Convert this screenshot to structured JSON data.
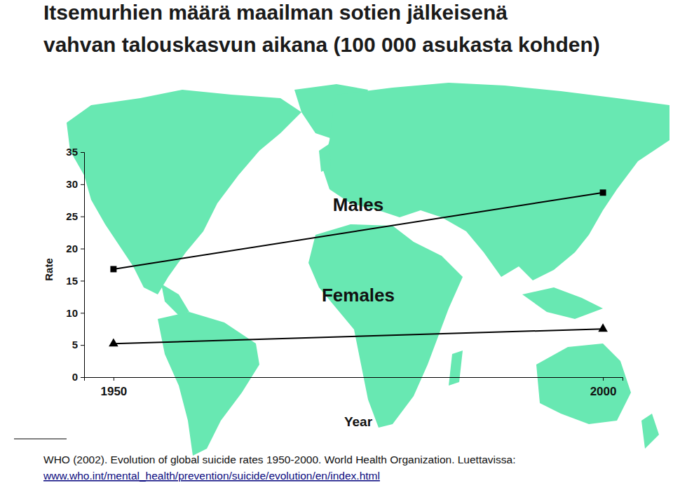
{
  "chart_data": {
    "type": "line",
    "title": [
      "Itsemurhien määrä maailman sotien jälkeisenä",
      "vahvan talouskasvun aikana (100 000 asukasta kohden)"
    ],
    "x_label": "Year",
    "y_label": "Rate",
    "x": [
      1950,
      2000
    ],
    "series": [
      {
        "name": "Males",
        "color": "#000000",
        "marker": "square",
        "values": [
          16.8,
          28.7
        ]
      },
      {
        "name": "Females",
        "color": "#000000",
        "marker": "triangle",
        "values": [
          5.2,
          7.5
        ]
      }
    ],
    "xlim": [
      1947,
      2002
    ],
    "xticks": [
      1950,
      2000
    ],
    "ylim": [
      0,
      35
    ],
    "yticks": [
      0,
      5,
      10,
      15,
      20,
      25,
      30,
      35
    ],
    "grid": false,
    "source": [
      "WHO (2002). Evolution of global suicide rates 1950-2000. World Health Organization. Luettavissa:",
      "www.who.int/mental_health/prevention/suicide/evolution/en/index.html"
    ]
  }
}
